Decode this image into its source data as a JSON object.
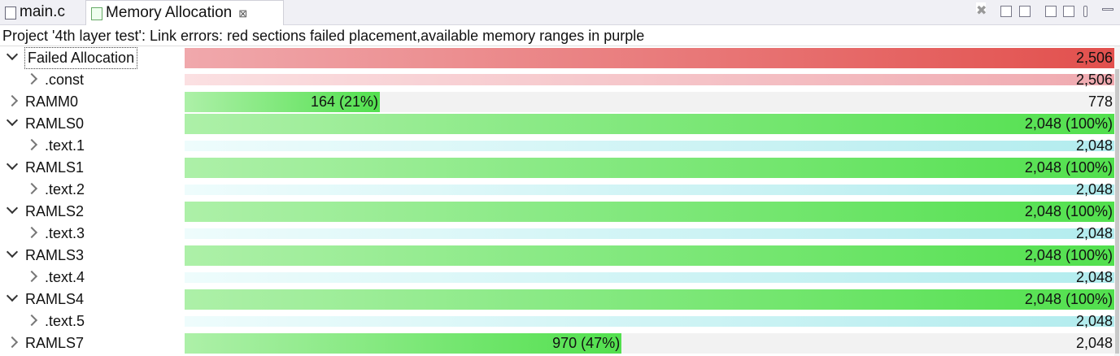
{
  "tabs": [
    {
      "label": "main.c"
    },
    {
      "label": "Memory Allocation",
      "active": true,
      "close": "⊠"
    }
  ],
  "message": "Project '4th layer test': Link errors: red sections failed placement,available memory ranges in purple",
  "rows": [
    {
      "label": "Failed Allocation",
      "level": 0,
      "expanded": true,
      "kind": "error",
      "bar_text": "2,506",
      "selected": true
    },
    {
      "label": ".const",
      "level": 1,
      "expanded": false,
      "kind": "error-section",
      "bar_text": "2,506"
    },
    {
      "label": "RAMM0",
      "level": 0,
      "expanded": false,
      "kind": "memory",
      "bar_text": "164 (21%)",
      "percent": 21,
      "total": "778"
    },
    {
      "label": "RAMLS0",
      "level": 0,
      "expanded": true,
      "kind": "memory",
      "bar_text": "2,048 (100%)",
      "percent": 100
    },
    {
      "label": ".text.1",
      "level": 1,
      "expanded": false,
      "kind": "section",
      "bar_text": "2,048"
    },
    {
      "label": "RAMLS1",
      "level": 0,
      "expanded": true,
      "kind": "memory",
      "bar_text": "2,048 (100%)",
      "percent": 100
    },
    {
      "label": ".text.2",
      "level": 1,
      "expanded": false,
      "kind": "section",
      "bar_text": "2,048"
    },
    {
      "label": "RAMLS2",
      "level": 0,
      "expanded": true,
      "kind": "memory",
      "bar_text": "2,048 (100%)",
      "percent": 100
    },
    {
      "label": ".text.3",
      "level": 1,
      "expanded": false,
      "kind": "section",
      "bar_text": "2,048"
    },
    {
      "label": "RAMLS3",
      "level": 0,
      "expanded": true,
      "kind": "memory",
      "bar_text": "2,048 (100%)",
      "percent": 100
    },
    {
      "label": ".text.4",
      "level": 1,
      "expanded": false,
      "kind": "section",
      "bar_text": "2,048"
    },
    {
      "label": "RAMLS4",
      "level": 0,
      "expanded": true,
      "kind": "memory",
      "bar_text": "2,048 (100%)",
      "percent": 100
    },
    {
      "label": ".text.5",
      "level": 1,
      "expanded": false,
      "kind": "section",
      "bar_text": "2,048"
    },
    {
      "label": "RAMLS7",
      "level": 0,
      "expanded": false,
      "kind": "memory",
      "bar_text": "970 (47%)",
      "percent": 47,
      "total": "2,048"
    }
  ]
}
